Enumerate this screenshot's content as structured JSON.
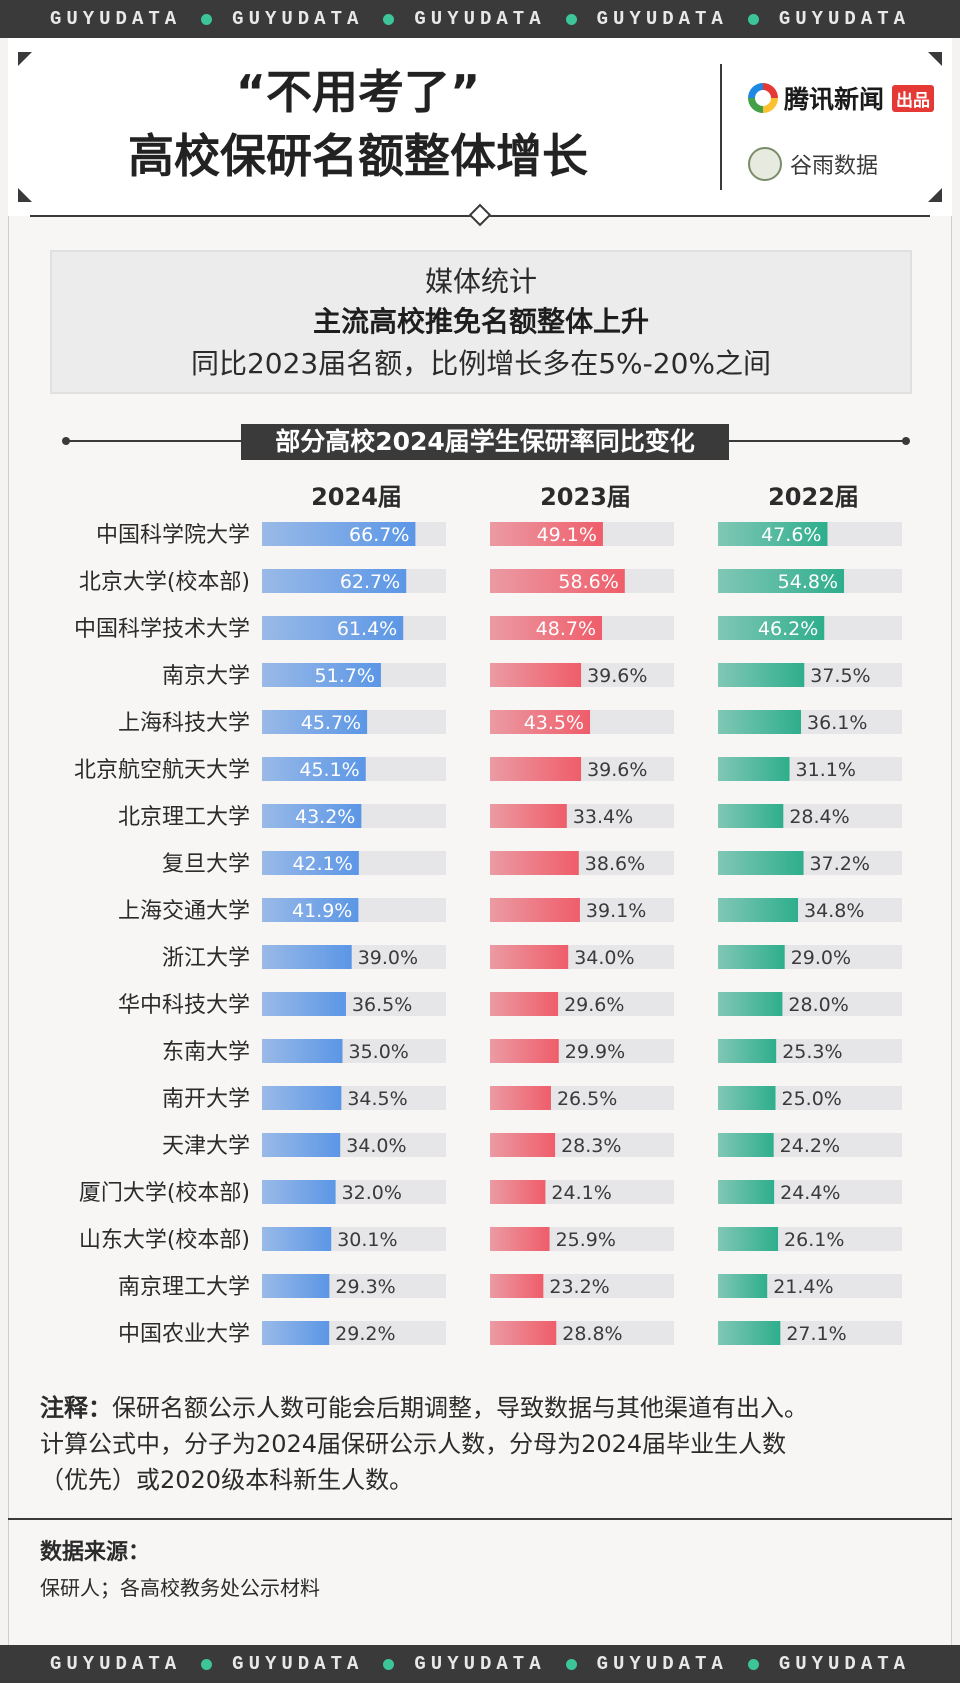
{
  "ticker": {
    "words": [
      "GUYUDATA",
      "GUYUDATA",
      "GUYUDATA",
      "GUYUDATA",
      "GUYUDATA"
    ]
  },
  "header": {
    "title_line1": "“不用考了”",
    "title_line2": "高校保研名额整体增长",
    "logo1_text": "腾讯新闻",
    "logo1_badge": "出品",
    "logo2_text": "谷雨数据"
  },
  "stat_box": {
    "line1": "媒体统计",
    "line2": "主流高校推免名额整体上升",
    "line3": "同比2023届名额，比例增长多在5%-20%之间"
  },
  "section_title": "部分高校2024届学生保研率同比变化",
  "notes": {
    "label": "注释：",
    "line1": "保研名额公示人数可能会后期调整，导致数据与其他渠道有出入。",
    "line2": "计算公式中，分子为2024届保研公示人数，分母为2024届毕业生人数",
    "line3": "（优先）或2020级本科新生人数。"
  },
  "source": {
    "label": "数据来源：",
    "text": "保研人；各高校教务处公示材料"
  },
  "colors": {
    "2024": "#5b96e6",
    "2023": "#ef5d6a",
    "2022": "#2eae8c",
    "track": "#e6e6e9"
  },
  "chart_data": {
    "type": "bar",
    "orientation": "horizontal",
    "title": "部分高校2024届学生保研率同比变化",
    "xlim": [
      0,
      100
    ],
    "categories": [
      "中国科学院大学",
      "北京大学(校本部)",
      "中国科学技术大学",
      "南京大学",
      "上海科技大学",
      "北京航空航天大学",
      "北京理工大学",
      "复旦大学",
      "上海交通大学",
      "浙江大学",
      "华中科技大学",
      "东南大学",
      "南开大学",
      "天津大学",
      "厦门大学(校本部)",
      "山东大学(校本部)",
      "南京理工大学",
      "中国农业大学"
    ],
    "series": [
      {
        "name": "2024届",
        "values": [
          66.7,
          62.7,
          61.4,
          51.7,
          45.7,
          45.1,
          43.2,
          42.1,
          41.9,
          39.0,
          36.5,
          35.0,
          34.5,
          34.0,
          32.0,
          30.1,
          29.3,
          29.2
        ]
      },
      {
        "name": "2023届",
        "values": [
          49.1,
          58.6,
          48.7,
          39.6,
          43.5,
          39.6,
          33.4,
          38.6,
          39.1,
          34.0,
          29.6,
          29.9,
          26.5,
          28.3,
          24.1,
          25.9,
          23.2,
          28.8
        ]
      },
      {
        "name": "2022届",
        "values": [
          47.6,
          54.8,
          46.2,
          37.5,
          36.1,
          31.1,
          28.4,
          37.2,
          34.8,
          29.0,
          28.0,
          25.3,
          25.0,
          24.2,
          24.4,
          26.1,
          21.4,
          27.1
        ]
      }
    ]
  }
}
